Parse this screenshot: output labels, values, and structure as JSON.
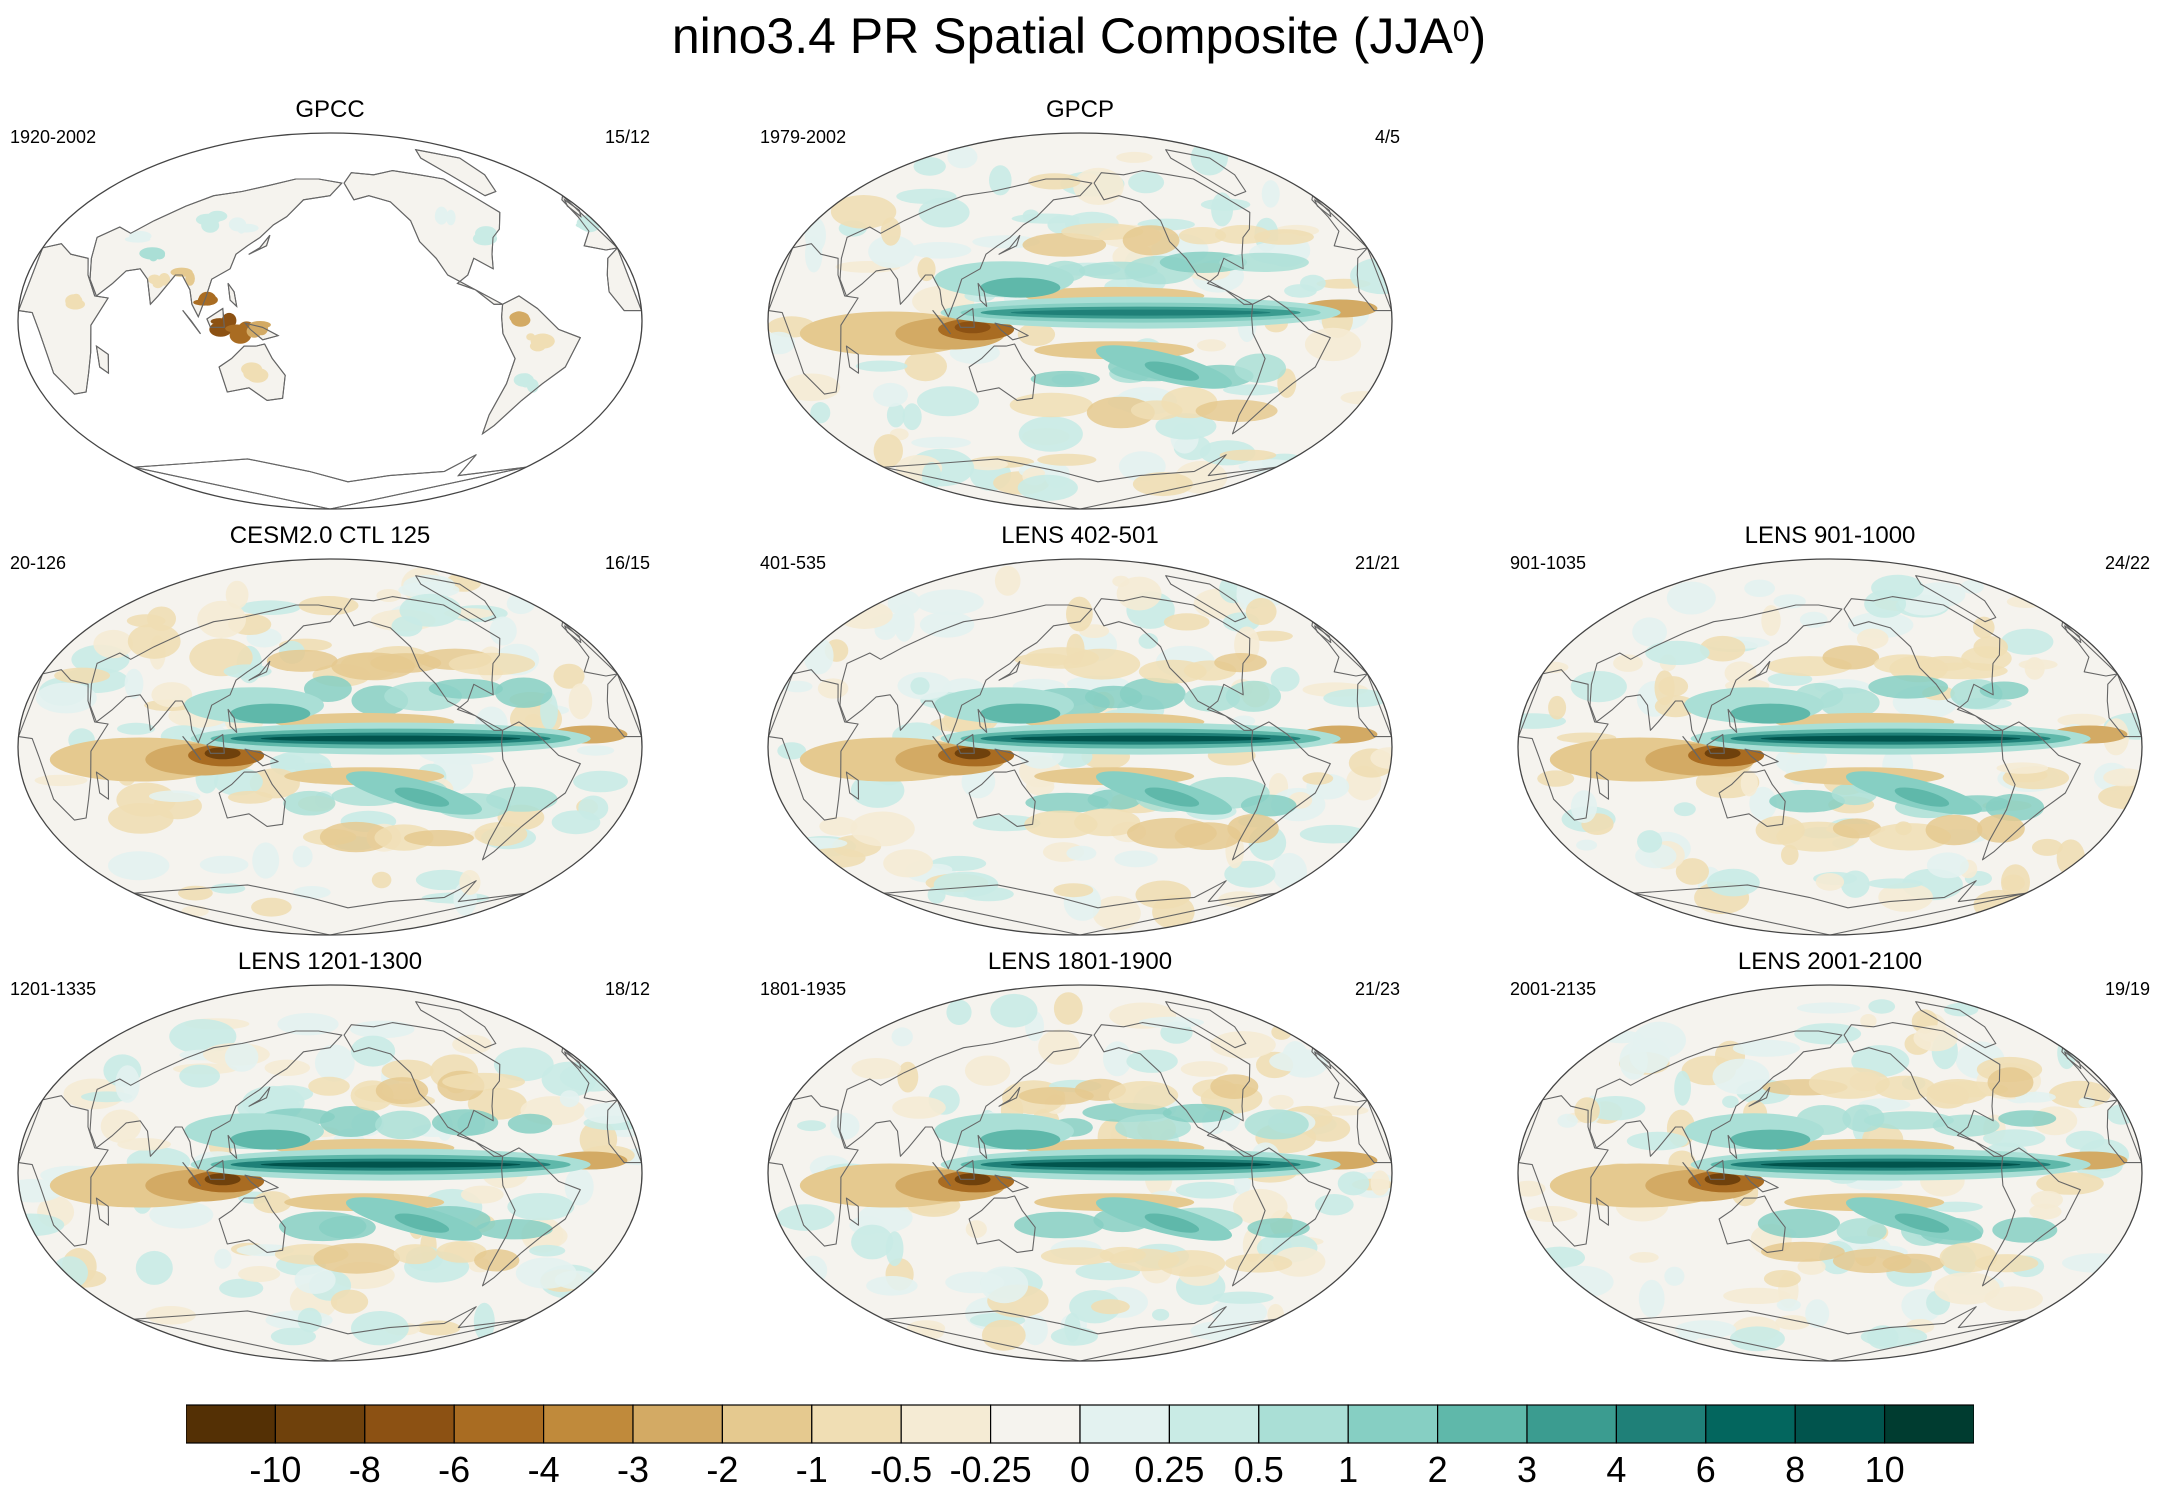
{
  "title": {
    "main": "nino3.4 PR Spatial Composite (JJA",
    "superscript": "0",
    "closing": ")"
  },
  "panels": [
    {
      "id": "gpcc",
      "title": "GPCC",
      "left": "1920-2002",
      "right": "15/12",
      "kind": "land",
      "seed": 11
    },
    {
      "id": "gpcp",
      "title": "GPCP",
      "left": "1979-2002",
      "right": "4/5",
      "kind": "obs",
      "seed": 23
    },
    {
      "id": "cesm-ctl",
      "title": "CESM2.0 CTL 125",
      "left": "20-126",
      "right": "16/15",
      "kind": "model",
      "seed": 37
    },
    {
      "id": "lens-402",
      "title": "LENS 402-501",
      "left": "401-535",
      "right": "21/21",
      "kind": "model",
      "seed": 41
    },
    {
      "id": "lens-901",
      "title": "LENS 901-1000",
      "left": "901-1035",
      "right": "24/22",
      "kind": "model",
      "seed": 53
    },
    {
      "id": "lens-1201",
      "title": "LENS 1201-1300",
      "left": "1201-1335",
      "right": "18/12",
      "kind": "model",
      "seed": 61
    },
    {
      "id": "lens-1801",
      "title": "LENS 1801-1900",
      "left": "1801-1935",
      "right": "21/23",
      "kind": "model",
      "seed": 71
    },
    {
      "id": "lens-2001",
      "title": "LENS 2001-2100",
      "left": "2001-2135",
      "right": "19/19",
      "kind": "model",
      "seed": 83
    }
  ],
  "colorbar": {
    "labels": [
      "-10",
      "-8",
      "-6",
      "-4",
      "-3",
      "-2",
      "-1",
      "-0.5",
      "-0.25",
      "0",
      "0.25",
      "0.5",
      "1",
      "2",
      "3",
      "4",
      "6",
      "8",
      "10"
    ],
    "colors": [
      "#543005",
      "#6f410c",
      "#8c5113",
      "#a96c22",
      "#c08a3b",
      "#d3aa64",
      "#e5c98f",
      "#f0deb4",
      "#f5ebd4",
      "#f5f3ee",
      "#e3f2f0",
      "#c9ebe5",
      "#aadfd6",
      "#86cfc3",
      "#5fb8aa",
      "#3b9c90",
      "#1f8078",
      "#03665e",
      "#01544d",
      "#003c30"
    ]
  }
}
